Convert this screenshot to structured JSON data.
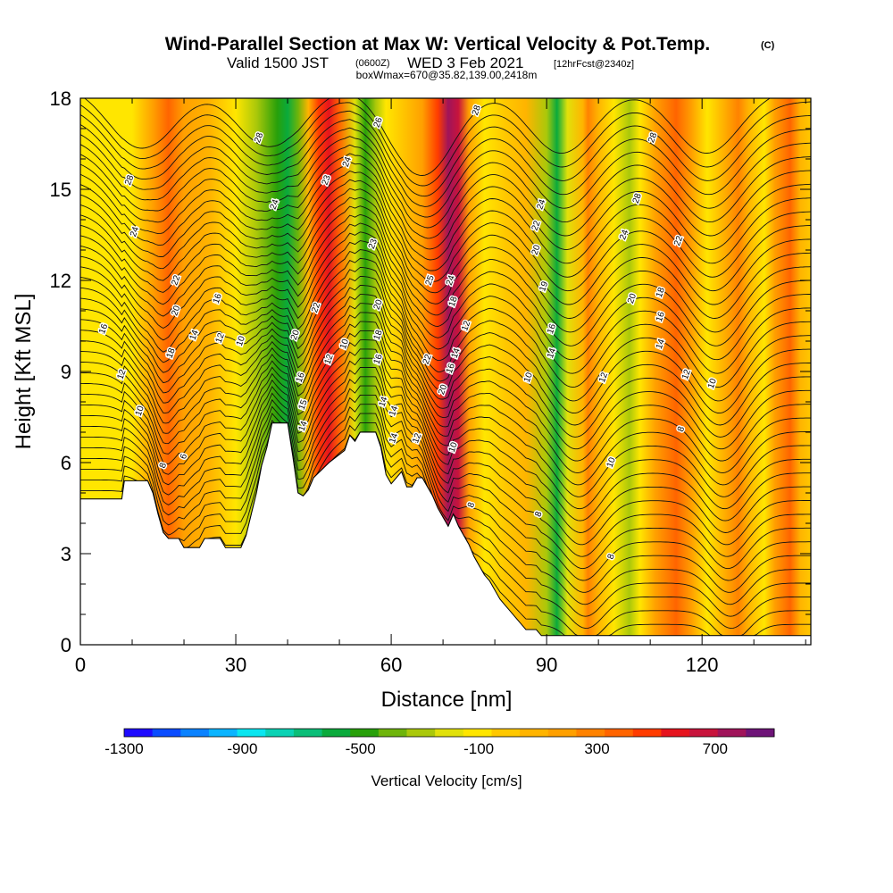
{
  "header": {
    "title": "Wind-Parallel Section at Max W: Vertical Velocity & Pot.Temp.",
    "copyright": "(C)",
    "valid_prefix": "Valid 1500 JST",
    "valid_zulu": "(0600Z)",
    "valid_date": "WED 3 Feb 2021",
    "forecast": "[12hrFcst@2340z]",
    "box_info": "boxWmax=670@35.82,139.00,2418m"
  },
  "chart_data": {
    "type": "heatmap",
    "xlabel": "Distance [nm]",
    "ylabel": "Height [Kft MSL]",
    "xlim": [
      0,
      141
    ],
    "ylim": [
      0,
      18
    ],
    "x_ticks": [
      0,
      30,
      60,
      90,
      120
    ],
    "y_ticks": [
      0,
      3,
      6,
      9,
      12,
      15,
      18
    ],
    "x_tick_labels": [
      "0",
      "30",
      "60",
      "90",
      "120"
    ],
    "y_tick_labels": [
      "0",
      "3",
      "6",
      "9",
      "12",
      "15",
      "18"
    ],
    "colorbar": {
      "title": "Vertical Velocity [cm/s]",
      "min": -1300,
      "max": 900,
      "labels": [
        -1300,
        -900,
        -500,
        -100,
        300,
        700
      ],
      "label_text": [
        "-1300",
        "-900",
        "-500",
        "-100",
        "300",
        "700"
      ],
      "colors": [
        "#1e0aff",
        "#0a4cff",
        "#0a82ff",
        "#0ab4ff",
        "#0ae6f0",
        "#0ad2b4",
        "#0abe78",
        "#0aaa3c",
        "#28a00a",
        "#6eb40a",
        "#aac80a",
        "#e1e10a",
        "#ffe600",
        "#ffc800",
        "#ffb400",
        "#ffa000",
        "#ff8200",
        "#ff6400",
        "#ff3c00",
        "#e6141e",
        "#c8143c",
        "#a0145a",
        "#6e1478"
      ]
    },
    "terrain_kft": [
      [
        0,
        4.8
      ],
      [
        8,
        4.8
      ],
      [
        8.5,
        5.4
      ],
      [
        13,
        5.4
      ],
      [
        14,
        5
      ],
      [
        15,
        4.3
      ],
      [
        16,
        3.7
      ],
      [
        17,
        3.5
      ],
      [
        19,
        3.5
      ],
      [
        20,
        3.2
      ],
      [
        23,
        3.2
      ],
      [
        24,
        3.5
      ],
      [
        27,
        3.5
      ],
      [
        28,
        3.2
      ],
      [
        31,
        3.2
      ],
      [
        32,
        3.6
      ],
      [
        33,
        4.3
      ],
      [
        34,
        5
      ],
      [
        35,
        5.9
      ],
      [
        36,
        6.5
      ],
      [
        37,
        7.3
      ],
      [
        40,
        7.3
      ],
      [
        41,
        6.2
      ],
      [
        42,
        5
      ],
      [
        43,
        4.9
      ],
      [
        44,
        5.1
      ],
      [
        45,
        5.5
      ],
      [
        48,
        6
      ],
      [
        51,
        6.4
      ],
      [
        52,
        6.9
      ],
      [
        53,
        6.7
      ],
      [
        54,
        7
      ],
      [
        57,
        7
      ],
      [
        58,
        6.5
      ],
      [
        59,
        5.6
      ],
      [
        60,
        5.3
      ],
      [
        62,
        5.7
      ],
      [
        63,
        5.2
      ],
      [
        64,
        5.2
      ],
      [
        65,
        5.5
      ],
      [
        66,
        5.5
      ],
      [
        67,
        5.2
      ],
      [
        68,
        4.9
      ],
      [
        69,
        4.5
      ],
      [
        70,
        4.2
      ],
      [
        71,
        3.9
      ],
      [
        72,
        4.3
      ],
      [
        73,
        3.9
      ],
      [
        74,
        3.6
      ],
      [
        75,
        3.3
      ],
      [
        76,
        2.9
      ],
      [
        77,
        2.6
      ],
      [
        78,
        2.3
      ],
      [
        79,
        2.1
      ],
      [
        80,
        1.8
      ],
      [
        81,
        1.5
      ],
      [
        82,
        1.3
      ],
      [
        83,
        1.1
      ],
      [
        84,
        0.9
      ],
      [
        85,
        0.7
      ],
      [
        86,
        0.5
      ],
      [
        88,
        0.5
      ],
      [
        89,
        0.3
      ],
      [
        141,
        0.3
      ]
    ],
    "velocity_columns": [
      {
        "x": 0,
        "w": -100
      },
      {
        "x": 10,
        "w": -100
      },
      {
        "x": 14,
        "w": 150
      },
      {
        "x": 17,
        "w": 400
      },
      {
        "x": 20,
        "w": 200
      },
      {
        "x": 25,
        "w": 50
      },
      {
        "x": 30,
        "w": -100
      },
      {
        "x": 34,
        "w": -250
      },
      {
        "x": 38,
        "w": -450
      },
      {
        "x": 40,
        "w": -600
      },
      {
        "x": 42,
        "w": -350
      },
      {
        "x": 44,
        "w": 100
      },
      {
        "x": 46,
        "w": 450
      },
      {
        "x": 48,
        "w": 600
      },
      {
        "x": 50,
        "w": 400
      },
      {
        "x": 53,
        "w": -200
      },
      {
        "x": 55,
        "w": -500
      },
      {
        "x": 57,
        "w": -300
      },
      {
        "x": 59,
        "w": -150
      },
      {
        "x": 62,
        "w": -50
      },
      {
        "x": 66,
        "w": 150
      },
      {
        "x": 69,
        "w": 450
      },
      {
        "x": 71,
        "w": 800
      },
      {
        "x": 73,
        "w": 700
      },
      {
        "x": 75,
        "w": 200
      },
      {
        "x": 78,
        "w": -100
      },
      {
        "x": 82,
        "w": -50
      },
      {
        "x": 86,
        "w": 100
      },
      {
        "x": 90,
        "w": -250
      },
      {
        "x": 92,
        "w": -550
      },
      {
        "x": 94,
        "w": -200
      },
      {
        "x": 97,
        "w": 100
      },
      {
        "x": 98,
        "w": 300
      },
      {
        "x": 100,
        "w": 100
      },
      {
        "x": 103,
        "w": -100
      },
      {
        "x": 106,
        "w": -300
      },
      {
        "x": 108,
        "w": -100
      },
      {
        "x": 111,
        "w": 150
      },
      {
        "x": 115,
        "w": 400
      },
      {
        "x": 118,
        "w": 200
      },
      {
        "x": 121,
        "w": -100
      },
      {
        "x": 124,
        "w": 100
      },
      {
        "x": 127,
        "w": 300
      },
      {
        "x": 129,
        "w": 100
      },
      {
        "x": 132,
        "w": -100
      },
      {
        "x": 134,
        "w": 150
      },
      {
        "x": 137,
        "w": 350
      },
      {
        "x": 139,
        "w": 100
      },
      {
        "x": 141,
        "w": -50
      }
    ],
    "isentrope_labels": [
      {
        "x": 20,
        "y": 6.2,
        "text": "6"
      },
      {
        "x": 16,
        "y": 5.9,
        "text": "8"
      },
      {
        "x": 11.5,
        "y": 7.7,
        "text": "10"
      },
      {
        "x": 8,
        "y": 8.9,
        "text": "12"
      },
      {
        "x": 4.5,
        "y": 10.4,
        "text": "16"
      },
      {
        "x": 22,
        "y": 10.2,
        "text": "14"
      },
      {
        "x": 27,
        "y": 10.1,
        "text": "12"
      },
      {
        "x": 31,
        "y": 10,
        "text": "10"
      },
      {
        "x": 17.5,
        "y": 9.6,
        "text": "18"
      },
      {
        "x": 18.5,
        "y": 11,
        "text": "20"
      },
      {
        "x": 18.5,
        "y": 12,
        "text": "22"
      },
      {
        "x": 26.5,
        "y": 11.4,
        "text": "16"
      },
      {
        "x": 10.5,
        "y": 13.6,
        "text": "24"
      },
      {
        "x": 9.5,
        "y": 15.3,
        "text": "28"
      },
      {
        "x": 34.5,
        "y": 16.7,
        "text": "28"
      },
      {
        "x": 37.5,
        "y": 14.5,
        "text": "24"
      },
      {
        "x": 41.5,
        "y": 10.2,
        "text": "20"
      },
      {
        "x": 42.5,
        "y": 8.8,
        "text": "16"
      },
      {
        "x": 43,
        "y": 7.9,
        "text": "15"
      },
      {
        "x": 43,
        "y": 7.2,
        "text": "14"
      },
      {
        "x": 48,
        "y": 9.4,
        "text": "12"
      },
      {
        "x": 51,
        "y": 9.9,
        "text": "10"
      },
      {
        "x": 45.5,
        "y": 11.1,
        "text": "22"
      },
      {
        "x": 47.5,
        "y": 15.3,
        "text": "23"
      },
      {
        "x": 51.5,
        "y": 15.9,
        "text": "24"
      },
      {
        "x": 57.5,
        "y": 17.2,
        "text": "26"
      },
      {
        "x": 56.5,
        "y": 13.2,
        "text": "23"
      },
      {
        "x": 57.5,
        "y": 11.2,
        "text": "20"
      },
      {
        "x": 57.5,
        "y": 10.2,
        "text": "18"
      },
      {
        "x": 57.5,
        "y": 9.4,
        "text": "16"
      },
      {
        "x": 58.5,
        "y": 8,
        "text": "14"
      },
      {
        "x": 60.5,
        "y": 6.8,
        "text": "14"
      },
      {
        "x": 60.5,
        "y": 7.7,
        "text": "14"
      },
      {
        "x": 67,
        "y": 9.4,
        "text": "22"
      },
      {
        "x": 67.5,
        "y": 12,
        "text": "25"
      },
      {
        "x": 71.5,
        "y": 12,
        "text": "24"
      },
      {
        "x": 72,
        "y": 11.3,
        "text": "18"
      },
      {
        "x": 74.5,
        "y": 10.5,
        "text": "12"
      },
      {
        "x": 72.5,
        "y": 9.6,
        "text": "14"
      },
      {
        "x": 71.5,
        "y": 9.1,
        "text": "16"
      },
      {
        "x": 70,
        "y": 8.4,
        "text": "20"
      },
      {
        "x": 72,
        "y": 6.5,
        "text": "10"
      },
      {
        "x": 76.5,
        "y": 17.6,
        "text": "28"
      },
      {
        "x": 65,
        "y": 6.8,
        "text": "12"
      },
      {
        "x": 75.5,
        "y": 4.6,
        "text": "8"
      },
      {
        "x": 86.5,
        "y": 8.8,
        "text": "10"
      },
      {
        "x": 88.5,
        "y": 4.3,
        "text": "8"
      },
      {
        "x": 89,
        "y": 14.5,
        "text": "24"
      },
      {
        "x": 88,
        "y": 13.8,
        "text": "22"
      },
      {
        "x": 88,
        "y": 13,
        "text": "20"
      },
      {
        "x": 89.5,
        "y": 11.8,
        "text": "19"
      },
      {
        "x": 91,
        "y": 10.4,
        "text": "16"
      },
      {
        "x": 91,
        "y": 9.6,
        "text": "14"
      },
      {
        "x": 101,
        "y": 8.8,
        "text": "12"
      },
      {
        "x": 102.5,
        "y": 6,
        "text": "10"
      },
      {
        "x": 102.5,
        "y": 2.9,
        "text": "8"
      },
      {
        "x": 105,
        "y": 13.5,
        "text": "24"
      },
      {
        "x": 106.5,
        "y": 11.4,
        "text": "20"
      },
      {
        "x": 107.5,
        "y": 14.7,
        "text": "28"
      },
      {
        "x": 110.5,
        "y": 16.7,
        "text": "28"
      },
      {
        "x": 115.5,
        "y": 13.3,
        "text": "22"
      },
      {
        "x": 112,
        "y": 11.6,
        "text": "18"
      },
      {
        "x": 112,
        "y": 10.8,
        "text": "16"
      },
      {
        "x": 112,
        "y": 9.9,
        "text": "14"
      },
      {
        "x": 117,
        "y": 8.9,
        "text": "12"
      },
      {
        "x": 122,
        "y": 8.6,
        "text": "10"
      },
      {
        "x": 116,
        "y": 7.1,
        "text": "8"
      }
    ]
  }
}
